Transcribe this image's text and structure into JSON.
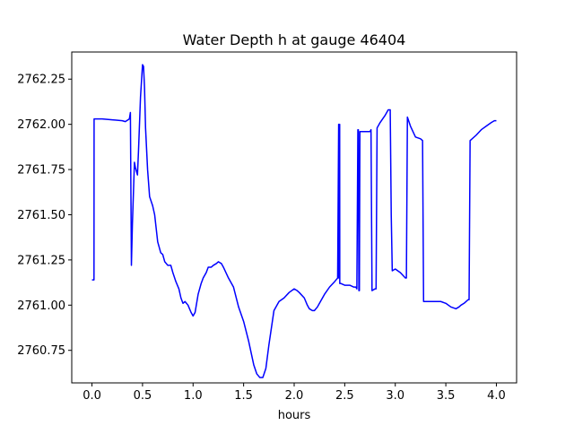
{
  "chart_data": {
    "type": "line",
    "title": "Water Depth h at gauge 46404",
    "xlabel": "hours",
    "ylabel": "",
    "xlim": [
      -0.2,
      4.2
    ],
    "ylim": [
      2760.57,
      2762.4
    ],
    "xticks": [
      0.0,
      0.5,
      1.0,
      1.5,
      2.0,
      2.5,
      3.0,
      3.5,
      4.0
    ],
    "xtick_labels": [
      "0.0",
      "0.5",
      "1.0",
      "1.5",
      "2.0",
      "2.5",
      "3.0",
      "3.5",
      "4.0"
    ],
    "yticks": [
      2760.75,
      2761.0,
      2761.25,
      2761.5,
      2761.75,
      2762.0,
      2762.25
    ],
    "ytick_labels": [
      "2760.75",
      "2761.00",
      "2761.25",
      "2761.50",
      "2761.75",
      "2762.00",
      "2762.25"
    ],
    "grid": false,
    "series": [
      {
        "color": "#0000ff",
        "x": [
          0.0,
          0.02,
          0.021,
          0.1,
          0.2,
          0.3,
          0.33,
          0.37,
          0.38,
          0.39,
          0.4,
          0.42,
          0.43,
          0.45,
          0.46,
          0.48,
          0.5,
          0.51,
          0.52,
          0.53,
          0.55,
          0.57,
          0.6,
          0.62,
          0.65,
          0.68,
          0.7,
          0.72,
          0.75,
          0.78,
          0.8,
          0.83,
          0.86,
          0.88,
          0.9,
          0.92,
          0.95,
          0.98,
          1.0,
          1.02,
          1.05,
          1.08,
          1.1,
          1.13,
          1.15,
          1.18,
          1.2,
          1.23,
          1.25,
          1.28,
          1.3,
          1.35,
          1.4,
          1.45,
          1.5,
          1.55,
          1.6,
          1.63,
          1.66,
          1.69,
          1.72,
          1.75,
          1.8,
          1.85,
          1.9,
          1.95,
          2.0,
          2.03,
          2.05,
          2.1,
          2.13,
          2.15,
          2.18,
          2.2,
          2.23,
          2.25,
          2.3,
          2.35,
          2.4,
          2.43,
          2.44,
          2.441,
          2.45,
          2.451,
          2.46,
          2.5,
          2.55,
          2.59,
          2.6,
          2.61,
          2.62,
          2.63,
          2.635,
          2.64,
          2.645,
          2.65,
          2.655,
          2.66,
          2.7,
          2.75,
          2.76,
          2.77,
          2.8,
          2.81,
          2.82,
          2.85,
          2.9,
          2.93,
          2.95,
          2.96,
          2.97,
          3.0,
          3.05,
          3.1,
          3.11,
          3.12,
          3.15,
          3.2,
          3.25,
          3.27,
          3.28,
          3.3,
          3.35,
          3.4,
          3.45,
          3.5,
          3.55,
          3.6,
          3.63,
          3.65,
          3.68,
          3.7,
          3.72,
          3.73,
          3.74,
          3.8,
          3.85,
          3.9,
          3.95,
          3.98,
          4.0
        ],
        "y": [
          2761.14,
          2761.14,
          2762.03,
          2762.03,
          2762.025,
          2762.02,
          2762.015,
          2762.03,
          2762.065,
          2761.22,
          2761.45,
          2761.79,
          2761.76,
          2761.72,
          2761.85,
          2762.15,
          2762.33,
          2762.32,
          2762.2,
          2761.98,
          2761.75,
          2761.6,
          2761.55,
          2761.5,
          2761.35,
          2761.29,
          2761.28,
          2761.24,
          2761.22,
          2761.22,
          2761.18,
          2761.13,
          2761.09,
          2761.04,
          2761.01,
          2761.02,
          2761.0,
          2760.96,
          2760.94,
          2760.96,
          2761.06,
          2761.12,
          2761.15,
          2761.18,
          2761.21,
          2761.21,
          2761.22,
          2761.23,
          2761.24,
          2761.23,
          2761.21,
          2761.15,
          2761.1,
          2760.99,
          2760.91,
          2760.8,
          2760.67,
          2760.62,
          2760.6,
          2760.6,
          2760.65,
          2760.78,
          2760.97,
          2761.02,
          2761.04,
          2761.07,
          2761.09,
          2761.08,
          2761.07,
          2761.04,
          2761.0,
          2760.98,
          2760.97,
          2760.97,
          2760.99,
          2761.01,
          2761.06,
          2761.1,
          2761.13,
          2761.15,
          2762.0,
          2761.15,
          2762.0,
          2761.12,
          2761.12,
          2761.11,
          2761.11,
          2761.1,
          2761.1,
          2761.1,
          2761.09,
          2761.97,
          2761.97,
          2761.08,
          2761.08,
          2761.96,
          2761.96,
          2761.96,
          2761.96,
          2761.96,
          2761.97,
          2761.08,
          2761.09,
          2761.09,
          2761.98,
          2762.01,
          2762.05,
          2762.08,
          2762.08,
          2761.5,
          2761.19,
          2761.2,
          2761.18,
          2761.15,
          2761.15,
          2762.04,
          2761.99,
          2761.93,
          2761.92,
          2761.91,
          2761.02,
          2761.02,
          2761.02,
          2761.02,
          2761.02,
          2761.01,
          2760.99,
          2760.98,
          2760.99,
          2761.0,
          2761.01,
          2761.02,
          2761.03,
          2761.03,
          2761.91,
          2761.94,
          2761.97,
          2761.99,
          2762.01,
          2762.02,
          2762.02
        ]
      }
    ]
  }
}
